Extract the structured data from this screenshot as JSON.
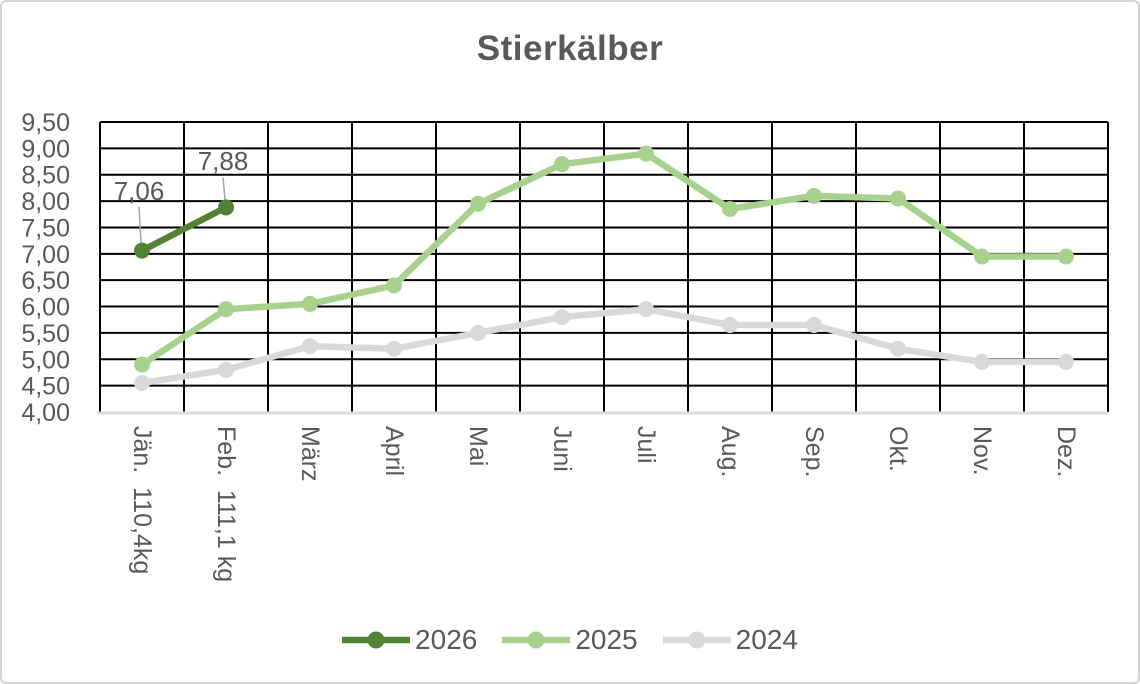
{
  "chart_data": {
    "type": "line",
    "title": "Stierkälber",
    "categories": [
      "Jän.  110,4kg",
      "Feb.  111,1 kg",
      "März",
      "April",
      "Mai",
      "Juni",
      "Juli",
      "Aug.",
      "Sep.",
      "Okt.",
      "Nov.",
      "Dez."
    ],
    "y_axis": {
      "min": 4.0,
      "max": 9.5,
      "step": 0.5,
      "tick_labels": [
        "9,50",
        "9,00",
        "8,50",
        "8,00",
        "7,50",
        "7,00",
        "6,50",
        "6,00",
        "5,50",
        "5,00",
        "4,50",
        "4,00"
      ]
    },
    "series": [
      {
        "name": "2026",
        "color": "#538135",
        "values": [
          7.06,
          7.88,
          null,
          null,
          null,
          null,
          null,
          null,
          null,
          null,
          null,
          null
        ],
        "data_labels": [
          {
            "index": 0,
            "text": "7,06"
          },
          {
            "index": 1,
            "text": "7,88"
          }
        ]
      },
      {
        "name": "2025",
        "color": "#a9d18e",
        "values": [
          4.9,
          5.95,
          6.05,
          6.4,
          7.95,
          8.7,
          8.9,
          7.85,
          8.1,
          8.05,
          6.95,
          6.95
        ]
      },
      {
        "name": "2024",
        "color": "#d9d9d9",
        "values": [
          4.55,
          4.8,
          5.25,
          5.2,
          5.5,
          5.8,
          5.95,
          5.65,
          5.65,
          5.2,
          4.95,
          4.95
        ]
      }
    ],
    "legend": {
      "position": "bottom",
      "entries": [
        "2026",
        "2025",
        "2024"
      ]
    },
    "grid": {
      "horizontal": true,
      "vertical": true,
      "gridline_color": "#000000",
      "axis_line_color": "#d9d9d9"
    },
    "leader_line_color": "#a6a6a6",
    "text_color": "#595959"
  }
}
